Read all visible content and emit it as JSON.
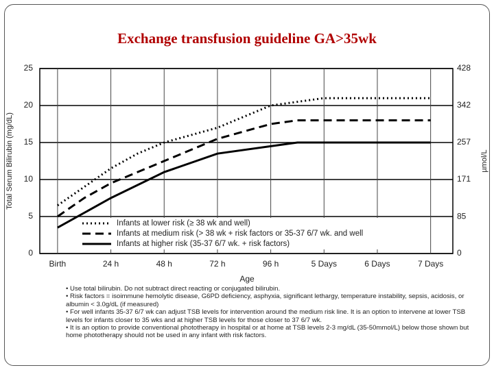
{
  "chart_data": {
    "type": "line",
    "title": "Exchange transfusion guideline GA>35wk",
    "x_label": "Age",
    "y_label": "Total Serum Bilirubin (mg/dL)",
    "y2_label": "µmol/L",
    "xlim": [
      -8,
      178
    ],
    "xticks": [
      {
        "value": 0,
        "label": "Birth"
      },
      {
        "value": 24,
        "label": "24 h"
      },
      {
        "value": 48,
        "label": "48 h"
      },
      {
        "value": 72,
        "label": "72 h"
      },
      {
        "value": 96,
        "label": "96 h"
      },
      {
        "value": 120,
        "label": "5 Days"
      },
      {
        "value": 144,
        "label": "6 Days"
      },
      {
        "value": 168,
        "label": "7 Days"
      }
    ],
    "ylim": [
      0,
      25
    ],
    "yticks": [
      0,
      5,
      10,
      15,
      20,
      25
    ],
    "y2lim": [
      0,
      427.5
    ],
    "y2ticks": [
      0,
      85,
      171,
      257,
      342,
      428
    ],
    "grid": true,
    "series": [
      {
        "name": "Infants at lower risk (≥ 38 wk and well)",
        "color": "#000000",
        "dash": "dotted",
        "x": [
          0,
          12,
          24,
          36,
          48,
          72,
          96,
          120,
          168
        ],
        "values": [
          6.5,
          9,
          11.5,
          13.5,
          15,
          17,
          20,
          21,
          21
        ]
      },
      {
        "name": "Infants at medium risk (> 38 wk + risk factors or 35-37 6/7 wk. and well",
        "color": "#000000",
        "dash": "dashed",
        "x": [
          0,
          12,
          24,
          48,
          72,
          96,
          108,
          168
        ],
        "values": [
          5,
          7.5,
          9.5,
          12.5,
          15.5,
          17.5,
          18,
          18
        ]
      },
      {
        "name": "Infants at higher risk (35-37 6/7 wk. + risk factors)",
        "color": "#000000",
        "dash": "solid",
        "x": [
          0,
          24,
          48,
          72,
          96,
          108,
          168
        ],
        "values": [
          3.5,
          7.5,
          11,
          13.5,
          14.5,
          15,
          15
        ]
      }
    ],
    "notes": [
      "• Use total bilirubin. Do not subtract direct reacting or conjugated bilirubin.",
      "• Risk factors = isoimmune hemolytic disease, G6PD deficiency, asphyxia, significant lethargy, temperature instability, sepsis, acidosis, or albumin < 3.0g/dL (if measured)",
      "• For well infants 35-37 6/7 wk can adjust TSB levels for intervention around the medium risk line. It is an option to intervene at lower TSB levels for infants closer to 35 wks and at higher TSB levels for those closer to 37 6/7 wk.",
      "• It is an option to provide conventional phototherapy in hospital or at home at TSB levels 2-3 mg/dL (35-50mmol/L) below those shown but home phototherapy should not be used in any infant with risk factors."
    ]
  }
}
